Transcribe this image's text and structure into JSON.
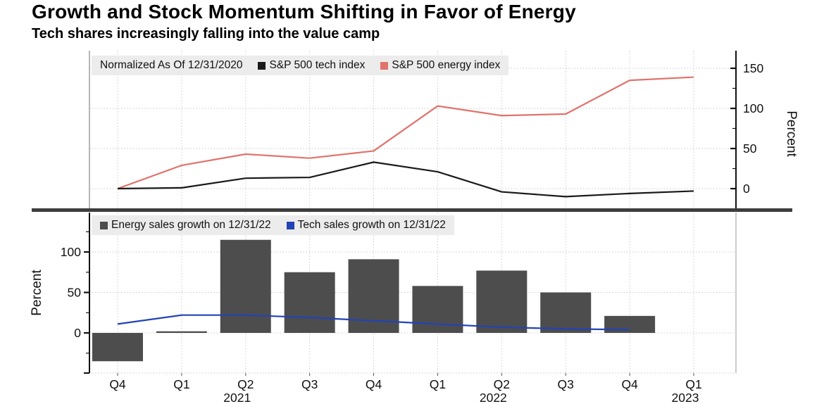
{
  "header": {
    "title": "Growth and Stock Momentum Shifting in Favor of Energy",
    "subtitle": "Tech shares increasingly falling into the value camp"
  },
  "x_axis": {
    "quarter_labels": [
      "Q4",
      "Q1",
      "Q2",
      "Q3",
      "Q4",
      "Q1",
      "Q2",
      "Q3",
      "Q4",
      "Q1"
    ],
    "year_labels": [
      {
        "label": "2021",
        "under_index": 2
      },
      {
        "label": "2022",
        "under_index": 6
      },
      {
        "label": "2023",
        "under_index": 9
      }
    ]
  },
  "chart_data": [
    {
      "type": "line",
      "panel": "top",
      "note": "Normalized As Of 12/31/2020",
      "x": [
        "Q4 2020",
        "Q1 2021",
        "Q2 2021",
        "Q3 2021",
        "Q4 2021",
        "Q1 2022",
        "Q2 2022",
        "Q3 2022",
        "Q4 2022",
        "Q1 2023"
      ],
      "series": [
        {
          "name": "S&P 500 tech index",
          "color": "#1a1a1a",
          "values": [
            0,
            1,
            13,
            14,
            33,
            21,
            -4,
            -10,
            -6,
            -3
          ]
        },
        {
          "name": "S&P 500 energy index",
          "color": "#e0736c",
          "values": [
            0,
            29,
            43,
            38,
            47,
            103,
            91,
            93,
            135,
            139
          ]
        }
      ],
      "ylabel": "Percent",
      "yticks": [
        0,
        50,
        100,
        150
      ],
      "yticks_minor": [
        25,
        75,
        125
      ],
      "ylim": [
        -25,
        172
      ],
      "axis_side": "right",
      "grid": true
    },
    {
      "type": "bar",
      "panel": "bottom",
      "x": [
        "Q4 2020",
        "Q1 2021",
        "Q2 2021",
        "Q3 2021",
        "Q4 2021",
        "Q1 2022",
        "Q2 2022",
        "Q3 2022",
        "Q4 2022",
        "Q1 2023"
      ],
      "series": [
        {
          "name": "Energy sales growth on 12/31/22",
          "kind": "bar",
          "color": "#4d4d4d",
          "values": [
            -35,
            2,
            115,
            75,
            91,
            58,
            77,
            50,
            21,
            null
          ]
        },
        {
          "name": "Tech sales growth on 12/31/22",
          "kind": "line",
          "color": "#2243b6",
          "values": [
            11,
            22,
            22,
            19,
            15,
            11,
            7,
            5,
            4,
            null
          ]
        }
      ],
      "ylabel": "Percent",
      "yticks": [
        0,
        50,
        100
      ],
      "yticks_minor": [
        -25,
        25,
        75,
        125
      ],
      "ylim": [
        -50,
        128
      ],
      "axis_side": "left",
      "grid": true
    }
  ]
}
